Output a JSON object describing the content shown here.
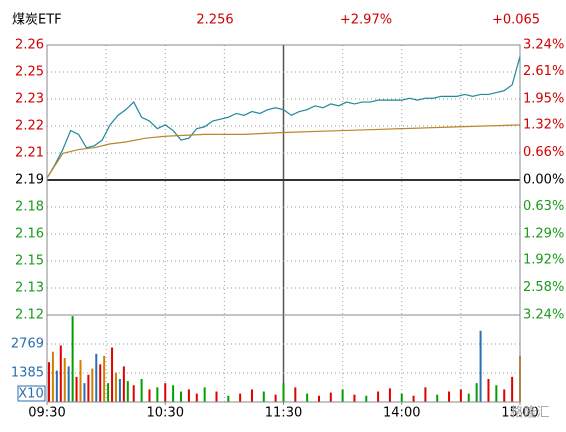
{
  "chart_data": {
    "type": "line",
    "title": "煤炭ETF",
    "header_values": [
      "2.256",
      "+2.97%",
      "+0.065"
    ],
    "xlim": [
      0,
      240
    ],
    "xticks": [
      {
        "value": 0,
        "label": "09:30"
      },
      {
        "value": 60,
        "label": "10:30"
      },
      {
        "value": 120,
        "label": "11:30"
      },
      {
        "value": 180,
        "label": "14:00"
      },
      {
        "value": 240,
        "label": "15:00"
      }
    ],
    "ylim": [
      2.12,
      2.262
    ],
    "yticks": [
      {
        "value": 2.262,
        "label": "2.26"
      },
      {
        "value": 2.2478,
        "label": "2.25"
      },
      {
        "value": 2.2336,
        "label": "2.23"
      },
      {
        "value": 2.2194,
        "label": "2.22"
      },
      {
        "value": 2.2052,
        "label": "2.21"
      },
      {
        "value": 2.191,
        "label": "2.19"
      },
      {
        "value": 2.1768,
        "label": "2.18"
      },
      {
        "value": 2.1626,
        "label": "2.16"
      },
      {
        "value": 2.1484,
        "label": "2.15"
      },
      {
        "value": 2.1342,
        "label": "2.13"
      },
      2.12
    ],
    "y2lim": [
      -3.24,
      3.24
    ],
    "y2ticks": [
      {
        "value": 3.24,
        "label": "3.24%"
      },
      {
        "value": 2.61,
        "label": "2.61%"
      },
      {
        "value": 1.95,
        "label": "1.95%"
      },
      {
        "value": 1.32,
        "label": "1.32%"
      },
      {
        "value": 0.66,
        "label": "0.66%"
      },
      {
        "value": 0,
        "label": "0.00%"
      },
      {
        "value": -0.63,
        "label": "0.63%"
      },
      {
        "value": -1.29,
        "label": "1.29%"
      },
      {
        "value": -1.92,
        "label": "1.92%"
      },
      {
        "value": -2.58,
        "label": "2.58%"
      },
      {
        "value": -3.24,
        "label": "3.24%"
      }
    ],
    "grid": true,
    "series": [
      {
        "color": "#1f8a9a",
        "x": [
          0,
          4,
          8,
          12,
          16,
          20,
          24,
          28,
          32,
          36,
          40,
          44,
          48,
          52,
          56,
          60,
          64,
          68,
          72,
          76,
          80,
          84,
          88,
          92,
          96,
          100,
          104,
          108,
          112,
          116,
          120,
          124,
          128,
          132,
          136,
          140,
          144,
          148,
          152,
          156,
          160,
          164,
          168,
          172,
          176,
          180,
          184,
          188,
          192,
          196,
          200,
          204,
          208,
          212,
          216,
          220,
          224,
          228,
          232,
          236,
          240
        ],
        "values": [
          2.192,
          2.199,
          2.207,
          2.217,
          2.215,
          2.208,
          2.209,
          2.212,
          2.22,
          2.225,
          2.228,
          2.232,
          2.224,
          2.222,
          2.218,
          2.22,
          2.217,
          2.212,
          2.213,
          2.218,
          2.219,
          2.222,
          2.223,
          2.224,
          2.226,
          2.225,
          2.227,
          2.226,
          2.228,
          2.229,
          2.228,
          2.225,
          2.227,
          2.228,
          2.23,
          2.229,
          2.231,
          2.23,
          2.232,
          2.231,
          2.232,
          2.232,
          2.233,
          2.233,
          2.233,
          2.233,
          2.234,
          2.233,
          2.234,
          2.234,
          2.235,
          2.235,
          2.235,
          2.236,
          2.235,
          2.236,
          2.236,
          2.237,
          2.238,
          2.241,
          2.256
        ]
      },
      {
        "color": "#b8862b",
        "x": [
          0,
          8,
          16,
          24,
          32,
          40,
          50,
          60,
          80,
          100,
          120,
          150,
          180,
          210,
          240
        ],
        "values": [
          2.192,
          2.205,
          2.207,
          2.208,
          2.21,
          2.211,
          2.213,
          2.214,
          2.215,
          2.215,
          2.216,
          2.217,
          2.218,
          2.219,
          2.22
        ]
      }
    ],
    "volume": {
      "type": "bar",
      "ylim": [
        0,
        4154
      ],
      "yticks": [
        1385,
        2769
      ],
      "unit_label": "X10",
      "x": [
        1,
        3,
        5,
        7,
        9,
        11,
        13,
        15,
        17,
        19,
        21,
        23,
        25,
        27,
        29,
        31,
        33,
        35,
        37,
        39,
        41,
        44,
        48,
        52,
        56,
        60,
        64,
        68,
        72,
        76,
        80,
        86,
        92,
        98,
        104,
        110,
        116,
        120,
        126,
        132,
        138,
        144,
        150,
        156,
        162,
        168,
        174,
        180,
        186,
        192,
        198,
        204,
        210,
        214,
        218,
        220,
        224,
        228,
        232,
        236,
        240
      ],
      "values": [
        1900,
        2400,
        1500,
        2700,
        2100,
        1700,
        4100,
        1200,
        2000,
        900,
        1300,
        1600,
        2300,
        1800,
        2200,
        900,
        2600,
        1400,
        1100,
        1700,
        1000,
        800,
        1100,
        600,
        700,
        900,
        800,
        500,
        600,
        400,
        700,
        500,
        300,
        400,
        600,
        500,
        350,
        900,
        700,
        400,
        300,
        450,
        600,
        350,
        300,
        500,
        650,
        400,
        300,
        700,
        350,
        500,
        600,
        400,
        900,
        3400,
        1100,
        800,
        600,
        1200,
        2200
      ],
      "colors": [
        "#e00000",
        "#d08000",
        "#2a6fb0",
        "#e00000",
        "#d08000",
        "#2a6fb0",
        "#00a000",
        "#e00000",
        "#d08000",
        "#2a6fb0",
        "#e00000",
        "#d08000",
        "#2a6fb0",
        "#e00000",
        "#d08000",
        "#00a000",
        "#e00000",
        "#d08000",
        "#2a6fb0",
        "#e00000",
        "#00a000",
        "#e00000",
        "#00a000",
        "#e00000",
        "#00a000",
        "#e00000",
        "#00a000",
        "#00a000",
        "#e00000",
        "#e00000",
        "#00a000",
        "#e00000",
        "#00a000",
        "#e00000",
        "#e00000",
        "#00a000",
        "#e00000",
        "#00a000",
        "#e00000",
        "#00a000",
        "#e00000",
        "#e00000",
        "#00a000",
        "#e00000",
        "#00a000",
        "#e00000",
        "#e00000",
        "#00a000",
        "#e00000",
        "#e00000",
        "#00a000",
        "#e00000",
        "#e00000",
        "#00a000",
        "#00a000",
        "#2a6fb0",
        "#e00000",
        "#00a000",
        "#e00000",
        "#e00000",
        "#d08000"
      ]
    },
    "watermark": "格隆汇"
  }
}
